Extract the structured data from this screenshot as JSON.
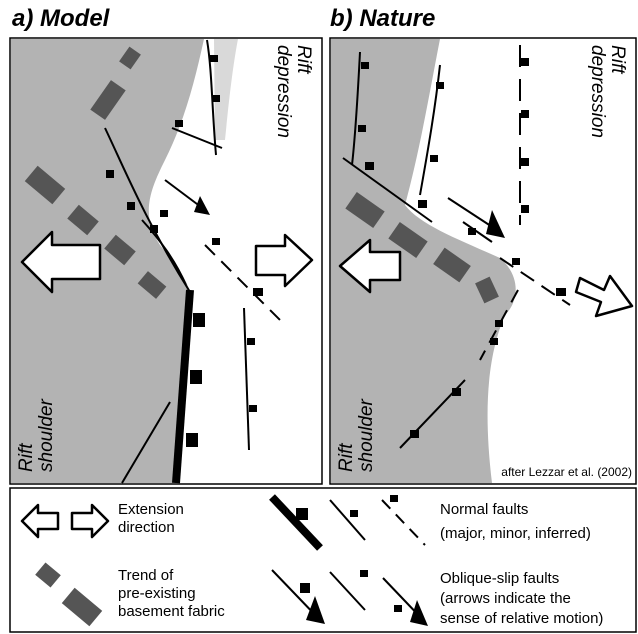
{
  "panels": [
    {
      "title": "a) Model",
      "depression": [
        "Rift",
        "depression"
      ],
      "shoulder": [
        "Rift",
        "shoulder"
      ]
    },
    {
      "title": "b) Nature",
      "depression": [
        "Rift",
        "depression"
      ],
      "shoulder": [
        "Rift",
        "shoulder"
      ],
      "credit": "after Lezzar et al. (2002)"
    }
  ],
  "legend": [
    {
      "lines": [
        "Extension",
        "direction"
      ]
    },
    {
      "lines": [
        "Trend of",
        "pre-existing",
        "basement fabric"
      ]
    },
    {
      "lines": [
        "Normal faults",
        "(major, minor, inferred)"
      ]
    },
    {
      "lines": [
        "Oblique-slip faults",
        "(arrows indicate the",
        "sense of relative motion)"
      ]
    }
  ]
}
